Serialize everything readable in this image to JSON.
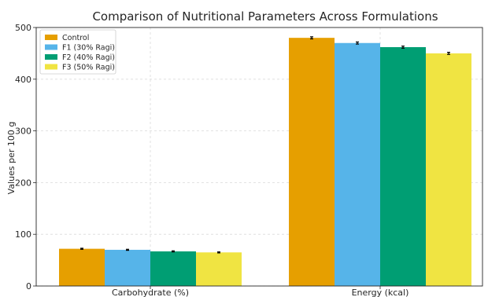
{
  "chart_data": {
    "type": "bar",
    "title": "Comparison of Nutritional Parameters Across Formulations",
    "xlabel": "",
    "ylabel": "Values per 100 g",
    "categories": [
      "Carbohydrate (%)",
      "Energy (kcal)"
    ],
    "ylim": [
      0,
      500
    ],
    "yticks": [
      "0",
      "100",
      "200",
      "300",
      "400",
      "500"
    ],
    "grid": true,
    "legend_position": "top-left",
    "error_bars": true,
    "series": [
      {
        "name": "Control",
        "color": "#E69F00",
        "values": [
          72,
          480
        ],
        "errors": [
          1,
          2
        ]
      },
      {
        "name": "F1 (30% Ragi)",
        "color": "#56B4E9",
        "values": [
          70,
          470
        ],
        "errors": [
          1,
          2
        ]
      },
      {
        "name": "F2 (40% Ragi)",
        "color": "#009E73",
        "values": [
          67,
          462
        ],
        "errors": [
          1,
          2
        ]
      },
      {
        "name": "F3 (50% Ragi)",
        "color": "#F0E442",
        "values": [
          65,
          450
        ],
        "errors": [
          1,
          2
        ]
      }
    ]
  }
}
